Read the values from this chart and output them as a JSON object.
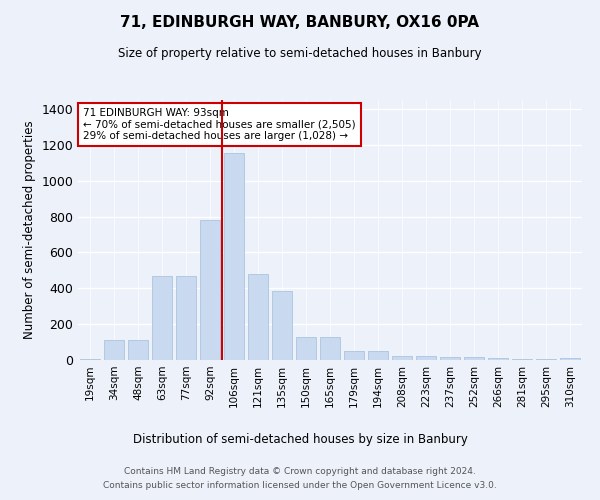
{
  "title": "71, EDINBURGH WAY, BANBURY, OX16 0PA",
  "subtitle": "Size of property relative to semi-detached houses in Banbury",
  "xlabel": "Distribution of semi-detached houses by size in Banbury",
  "ylabel": "Number of semi-detached properties",
  "categories": [
    "19sqm",
    "34sqm",
    "48sqm",
    "63sqm",
    "77sqm",
    "92sqm",
    "106sqm",
    "121sqm",
    "135sqm",
    "150sqm",
    "165sqm",
    "179sqm",
    "194sqm",
    "208sqm",
    "223sqm",
    "237sqm",
    "252sqm",
    "266sqm",
    "281sqm",
    "295sqm",
    "310sqm"
  ],
  "values": [
    5,
    110,
    110,
    470,
    470,
    780,
    1155,
    480,
    385,
    130,
    130,
    50,
    50,
    25,
    25,
    15,
    15,
    10,
    5,
    5,
    10
  ],
  "bar_color": "#c9d9f0",
  "bar_edge_color": "#a0bedd",
  "property_label": "71 EDINBURGH WAY: 93sqm",
  "annotation_line1": "← 70% of semi-detached houses are smaller (2,505)",
  "annotation_line2": "29% of semi-detached houses are larger (1,028) →",
  "vline_color": "#cc0000",
  "vline_index": 5.5,
  "annotation_box_color": "#ffffff",
  "annotation_box_edge": "#cc0000",
  "ylim": [
    0,
    1450
  ],
  "yticks": [
    0,
    200,
    400,
    600,
    800,
    1000,
    1200,
    1400
  ],
  "footer_line1": "Contains HM Land Registry data © Crown copyright and database right 2024.",
  "footer_line2": "Contains public sector information licensed under the Open Government Licence v3.0.",
  "bg_color": "#edf1fa",
  "plot_bg_color": "#edf1fa",
  "grid_color": "#ffffff"
}
